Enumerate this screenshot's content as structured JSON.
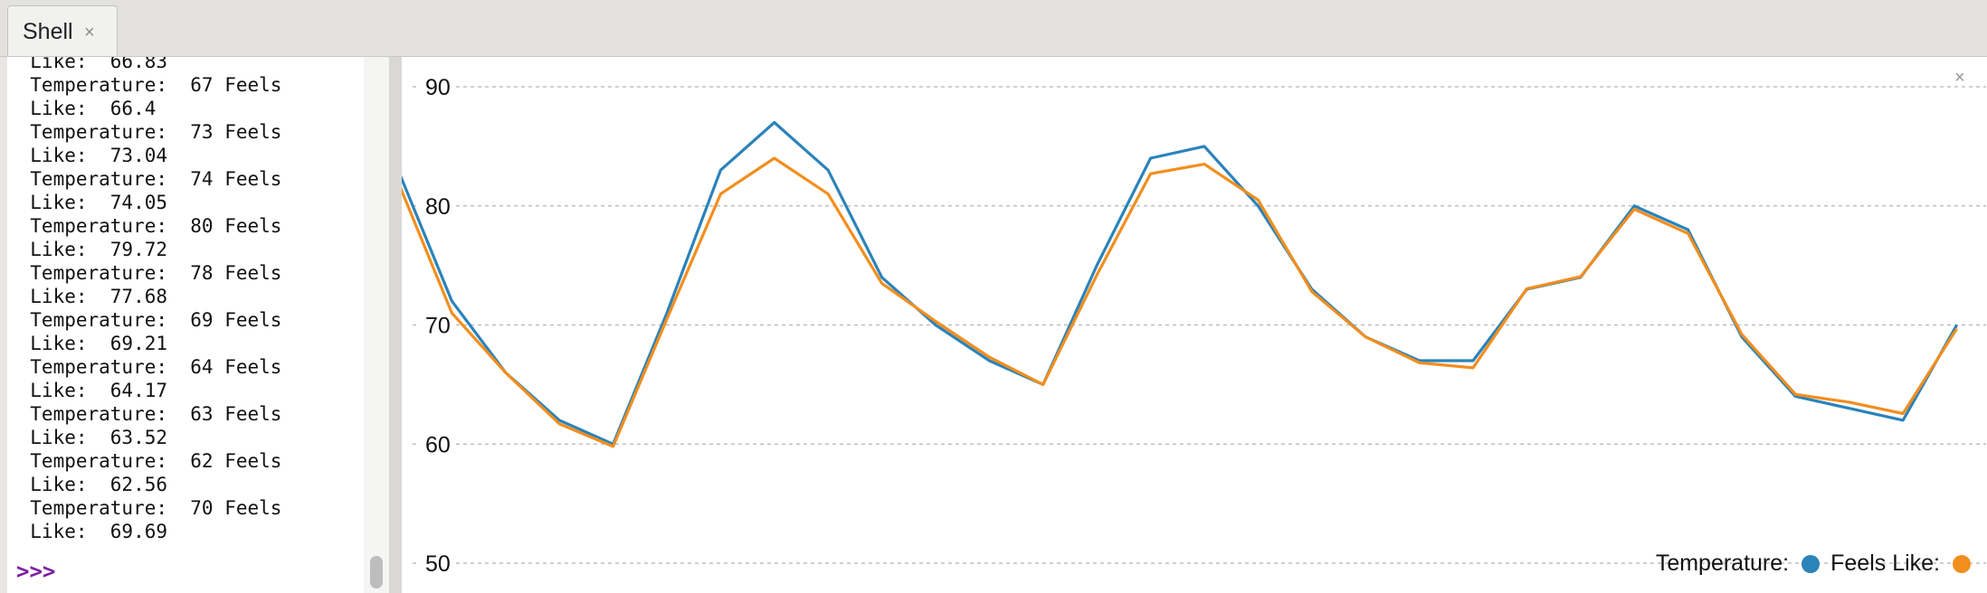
{
  "tab": {
    "title": "Shell",
    "close": "×"
  },
  "shell": {
    "lines": [
      "  Like:  66.83",
      "  Temperature:  67 Feels",
      "  Like:  66.4",
      "  Temperature:  73 Feels",
      "  Like:  73.04",
      "  Temperature:  74 Feels",
      "  Like:  74.05",
      "  Temperature:  80 Feels",
      "  Like:  79.72",
      "  Temperature:  78 Feels",
      "  Like:  77.68",
      "  Temperature:  69 Feels",
      "  Like:  69.21",
      "  Temperature:  64 Feels",
      "  Like:  64.17",
      "  Temperature:  63 Feels",
      "  Like:  63.52",
      "  Temperature:  62 Feels",
      "  Like:  62.56",
      "  Temperature:  70 Feels",
      "  Like:  69.69"
    ],
    "prompt": ">>>"
  },
  "plotter": {
    "close": "×"
  },
  "chart_data": {
    "type": "line",
    "y_ticks": [
      90,
      80,
      70,
      60,
      50
    ],
    "ylim": [
      50,
      92.5
    ],
    "grid": true,
    "legend_position": "bottom-right",
    "series": [
      {
        "name": "Temperature:",
        "color": "#2b83ba",
        "values": [
          83,
          72,
          66,
          62,
          60,
          71,
          83,
          87,
          83,
          74,
          70,
          67,
          65,
          75,
          84,
          85,
          80,
          73,
          69,
          67,
          67,
          73,
          74,
          80,
          78,
          69,
          64,
          63,
          62,
          70
        ]
      },
      {
        "name": "Feels Like:",
        "color": "#f28e1e",
        "values": [
          82,
          71,
          66,
          61.7,
          59.8,
          70.5,
          81,
          84,
          81,
          73.5,
          70.3,
          67.3,
          65,
          74.2,
          82.7,
          83.5,
          80.5,
          72.8,
          69,
          66.83,
          66.4,
          73.04,
          74.05,
          79.72,
          77.68,
          69.21,
          64.17,
          63.52,
          62.56,
          69.69
        ]
      }
    ]
  }
}
